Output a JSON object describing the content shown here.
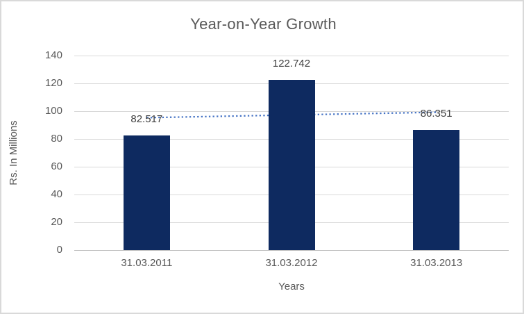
{
  "chart_data": {
    "type": "bar",
    "title": "Year-on-Year Growth",
    "categories": [
      "31.03.2011",
      "31.03.2012",
      "31.03.2013"
    ],
    "series": [
      {
        "name": "Rs. In Millions",
        "values": [
          82.517,
          122.742,
          86.351
        ]
      }
    ],
    "data_labels": [
      "82.517",
      "122.742",
      "86.351"
    ],
    "xlabel": "Years",
    "ylabel": "Rs. In Millions",
    "ylim": [
      0,
      140
    ],
    "yticks": [
      0,
      20,
      40,
      60,
      80,
      100,
      120,
      140
    ],
    "grid": true,
    "legend": false,
    "trendline": {
      "type": "linear",
      "style": "dotted",
      "start_value": 95.3,
      "end_value": 99.2
    }
  },
  "colors": {
    "bar": "#0e2a60",
    "trendline": "#4472c4",
    "gridline": "#d9d9d9",
    "axis_line": "#c0c0c0",
    "text": "#595959",
    "data_label": "#404040",
    "border": "#d9d9d9",
    "background": "#ffffff"
  }
}
